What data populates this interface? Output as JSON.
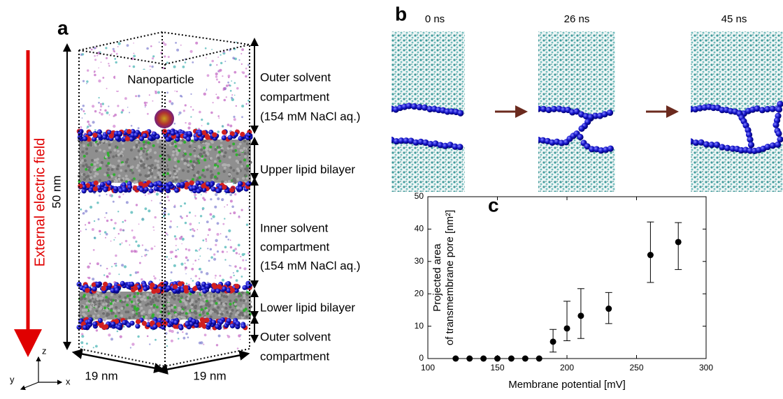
{
  "panel_labels": {
    "a": "a",
    "b": "b",
    "c": "c"
  },
  "panel_a": {
    "field_label": "External electric field",
    "height_label": "50 nm",
    "nanoparticle": "Nanoparticle",
    "outer_top": [
      "Outer solvent",
      "compartment",
      "(154 mM NaCl aq.)"
    ],
    "upper_bilayer": "Upper lipid bilayer",
    "inner": [
      "Inner solvent",
      "compartment",
      "(154 mM NaCl aq.)"
    ],
    "lower_bilayer": "Lower lipid bilayer",
    "outer_bottom": [
      "Outer solvent",
      "compartment"
    ],
    "width_left": "19 nm",
    "width_right": "19 nm",
    "axes": {
      "z": "z",
      "y": "y",
      "x": "x"
    }
  },
  "panel_b": {
    "times": [
      "0 ns",
      "26 ns",
      "45 ns"
    ]
  },
  "chart_data": {
    "type": "scatter",
    "xlabel": "Membrane potential [mV]",
    "ylabel": [
      "Projected area",
      "of transmembrane pore [nm²]"
    ],
    "x": [
      120,
      130,
      140,
      150,
      160,
      170,
      180,
      190,
      200,
      210,
      230,
      260,
      280
    ],
    "y": [
      0,
      0,
      0,
      0,
      0,
      0,
      0,
      5.2,
      9.3,
      13.2,
      15.4,
      32,
      36
    ],
    "error_minus": [
      0,
      0,
      0,
      0,
      0,
      0,
      0,
      3.2,
      3.8,
      7,
      4.6,
      8.5,
      8.5
    ],
    "error_plus": [
      0,
      0,
      0,
      0,
      0,
      0,
      0,
      3.8,
      8.4,
      8.4,
      5,
      10.2,
      6
    ],
    "color": "#000000",
    "xlim": [
      100,
      300
    ],
    "xticks": [
      100,
      150,
      200,
      250,
      300
    ],
    "ylim": [
      0,
      50
    ],
    "yticks": [
      0,
      10,
      20,
      30,
      40,
      50
    ]
  }
}
